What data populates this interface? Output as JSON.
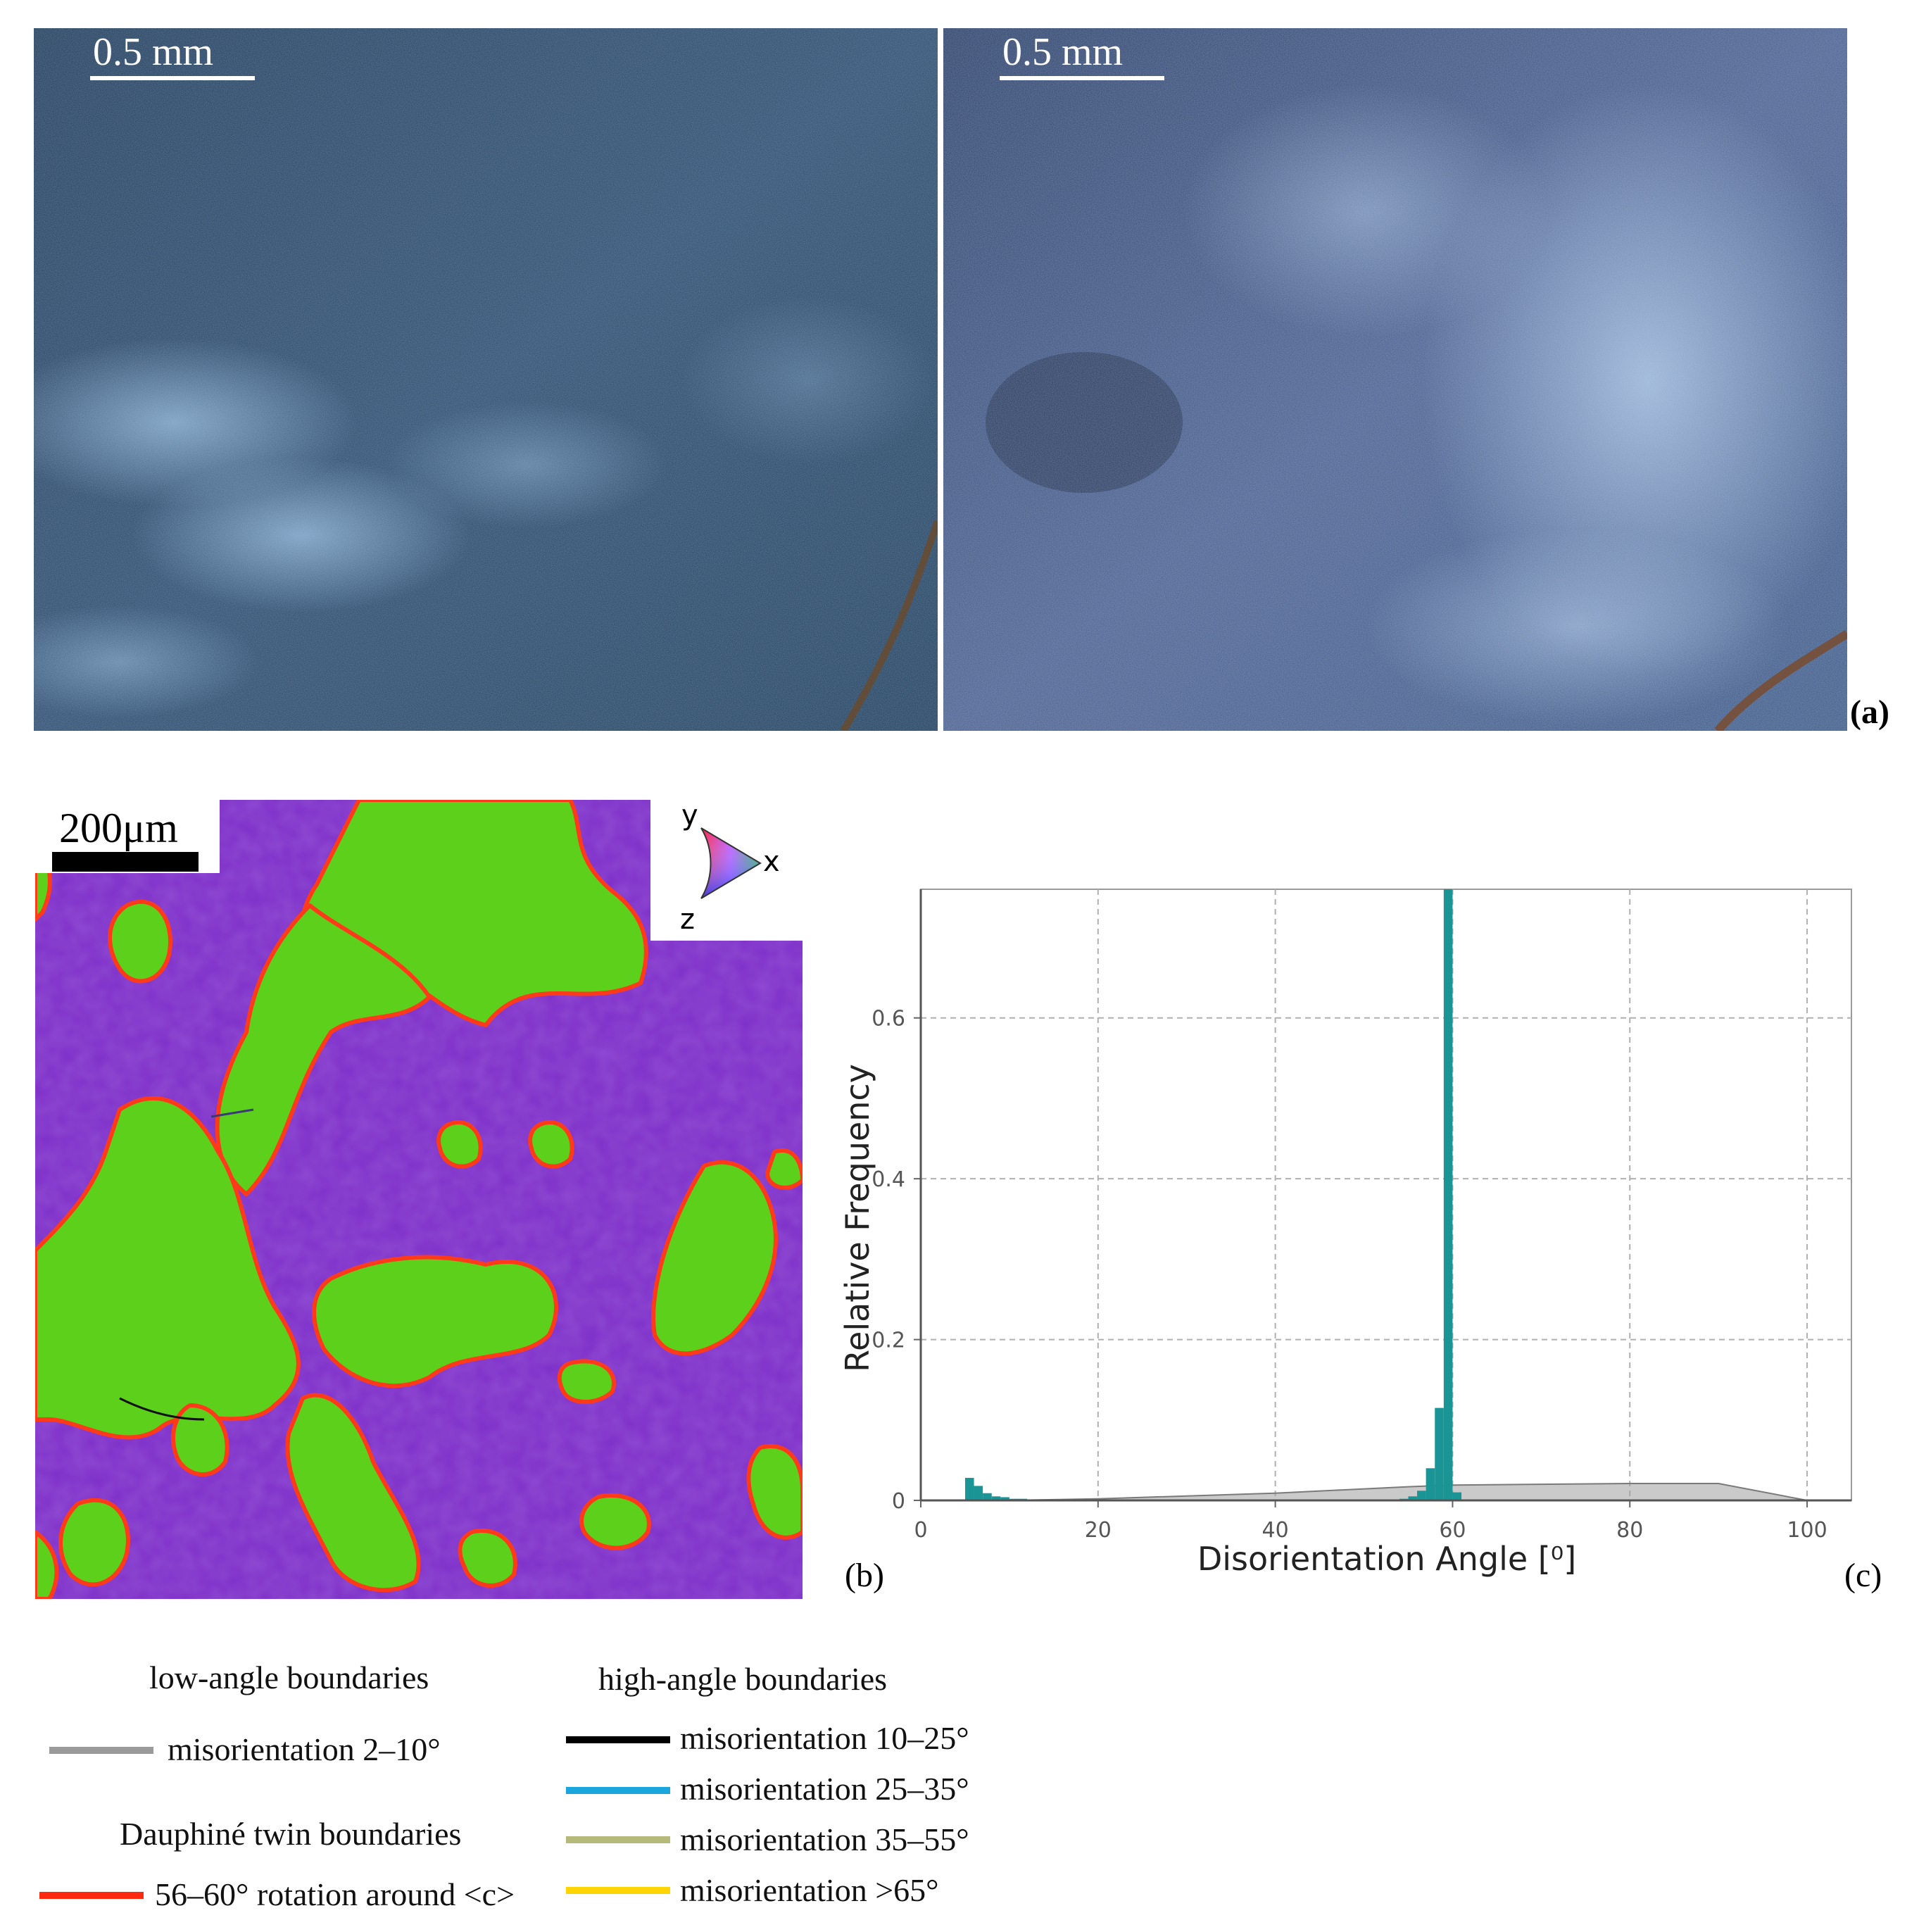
{
  "panel_a": {
    "left_image": {
      "scale_label": "0.5 mm"
    },
    "right_image": {
      "scale_label": "0.5 mm"
    },
    "label": "(a)"
  },
  "panel_b": {
    "scale_label": "200μm",
    "ipf_key": {
      "y": "y",
      "x": "x",
      "z": "z"
    },
    "label": "(b)",
    "colors": {
      "grain_purple": "#7d2ec8",
      "grain_green": "#5cd01a",
      "twin_boundary": "#ff3a1a"
    }
  },
  "panel_c": {
    "label": "(c)"
  },
  "chart_data": {
    "type": "bar",
    "xlabel": "Disorientation Angle [⁰]",
    "ylabel": "Relative Frequency",
    "xlim": [
      0,
      105
    ],
    "ylim": [
      0,
      0.76
    ],
    "xticks": [
      0,
      20,
      40,
      60,
      80,
      100
    ],
    "yticks": [
      0,
      0.2,
      0.4,
      0.6
    ],
    "ytick_labels": [
      "0",
      "0.2",
      "0.4",
      "0.6"
    ],
    "grid": true,
    "bin_width": 1,
    "bars": [
      {
        "x": 5,
        "y": 0.028
      },
      {
        "x": 6,
        "y": 0.018
      },
      {
        "x": 7,
        "y": 0.009
      },
      {
        "x": 8,
        "y": 0.005
      },
      {
        "x": 9,
        "y": 0.004
      },
      {
        "x": 10,
        "y": 0.002
      },
      {
        "x": 11,
        "y": 0.002
      },
      {
        "x": 12,
        "y": 0.001
      },
      {
        "x": 13,
        "y": 0.001
      },
      {
        "x": 15,
        "y": 0.001
      },
      {
        "x": 16,
        "y": 0.001
      },
      {
        "x": 53,
        "y": 0.001
      },
      {
        "x": 54,
        "y": 0.002
      },
      {
        "x": 55,
        "y": 0.005
      },
      {
        "x": 56,
        "y": 0.012
      },
      {
        "x": 57,
        "y": 0.04
      },
      {
        "x": 58,
        "y": 0.115
      },
      {
        "x": 59,
        "y": 0.76
      },
      {
        "x": 60,
        "y": 0.01
      }
    ],
    "random_distribution": [
      [
        0,
        0
      ],
      [
        10,
        0
      ],
      [
        20,
        0.002
      ],
      [
        40,
        0.009
      ],
      [
        55,
        0.017
      ],
      [
        60,
        0.019
      ],
      [
        80,
        0.021
      ],
      [
        90,
        0.021
      ],
      [
        100,
        0
      ],
      [
        104,
        0
      ]
    ],
    "bar_color": "#1a9494",
    "random_color": "#9e9e9e"
  },
  "legend": {
    "low_angle": {
      "title": "low-angle boundaries",
      "items": [
        {
          "label": "misorientation 2–10°",
          "color": "#9a9a9a"
        }
      ]
    },
    "dauphine": {
      "title": "Dauphiné twin boundaries",
      "items": [
        {
          "label": "56–60° rotation around <c>",
          "color": "#ff2a10"
        }
      ]
    },
    "high_angle": {
      "title": "high-angle boundaries",
      "items": [
        {
          "label": "misorientation 10–25°",
          "color": "#000000"
        },
        {
          "label": "misorientation 25–35°",
          "color": "#1aa6dc"
        },
        {
          "label": "misorientation 35–55°",
          "color": "#b5b97a"
        },
        {
          "label": "misorientation >65°",
          "color": "#ffd400"
        }
      ]
    }
  }
}
